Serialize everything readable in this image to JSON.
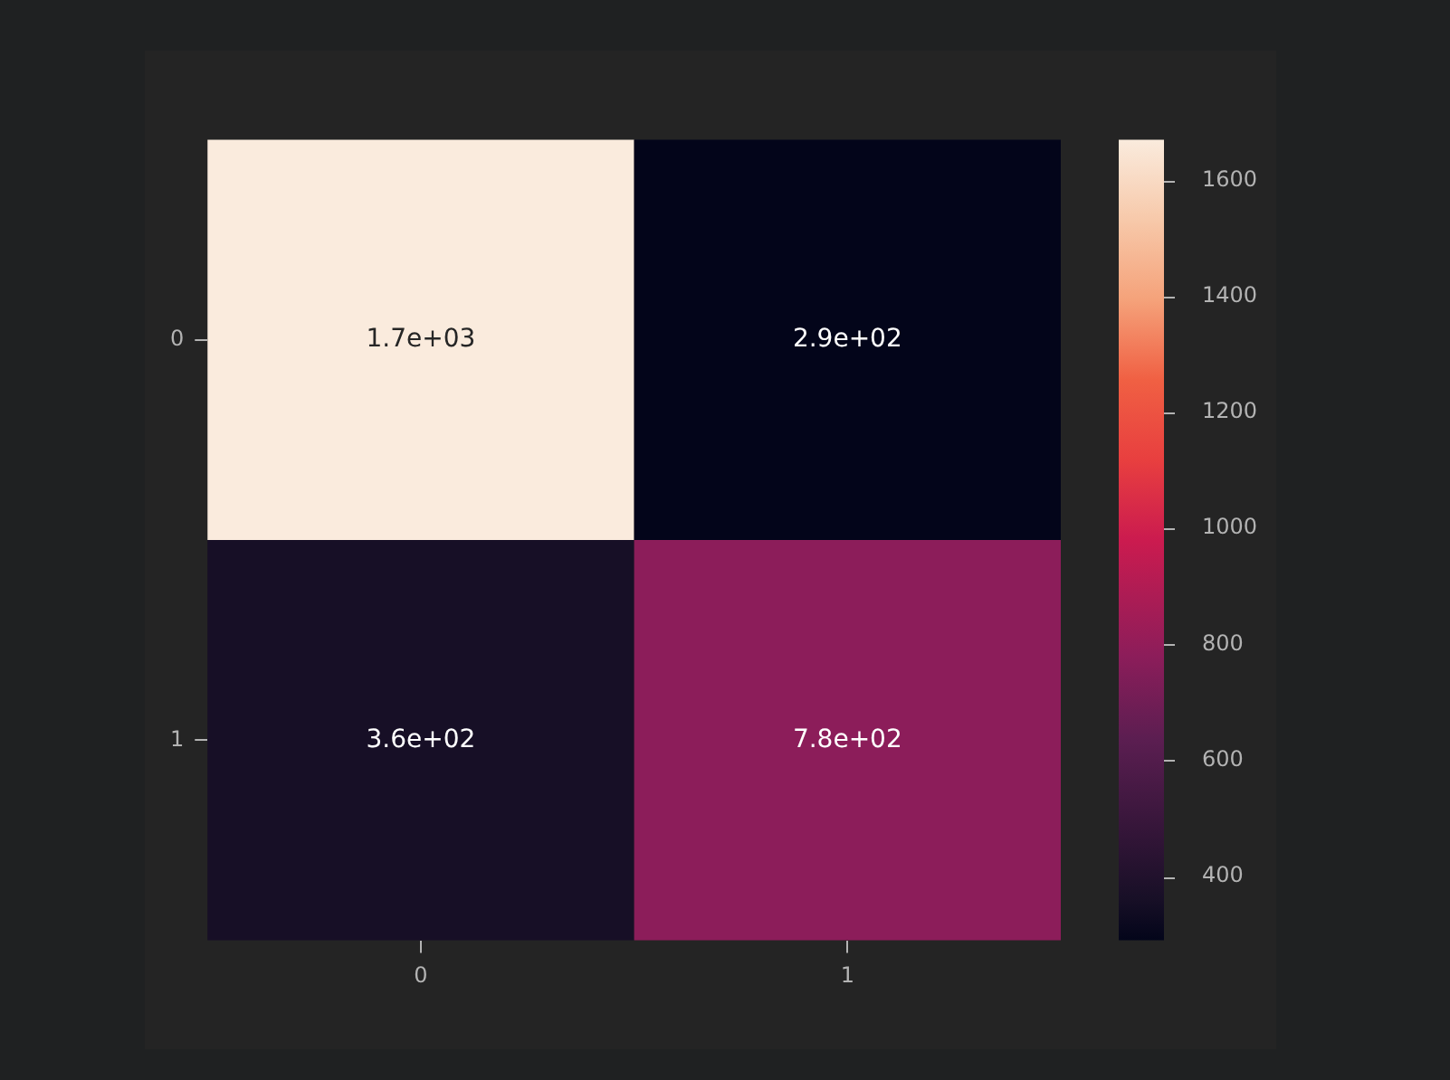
{
  "chart_data": {
    "type": "heatmap",
    "categories": [
      "0",
      "1"
    ],
    "y_categories": [
      "0",
      "1"
    ],
    "cells": [
      [
        1670,
        290
      ],
      [
        360,
        780
      ]
    ],
    "cell_labels": [
      [
        "1.7e+03",
        "2.9e+02"
      ],
      [
        "3.6e+02",
        "7.8e+02"
      ]
    ],
    "clim": [
      290,
      1670
    ],
    "cticks": [
      400,
      600,
      800,
      1000,
      1200,
      1400,
      1600
    ]
  }
}
